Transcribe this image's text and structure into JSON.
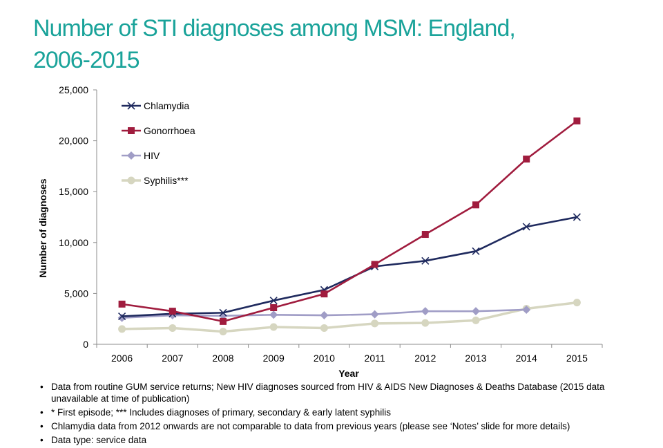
{
  "title_line1": "Number of STI diagnoses among MSM: England,",
  "title_line2": "2006-2015",
  "chart_data": {
    "type": "line",
    "xlabel": "Year",
    "ylabel": "Number of diagnoses",
    "ylim": [
      0,
      25000
    ],
    "yticks": [
      0,
      5000,
      10000,
      15000,
      20000,
      25000
    ],
    "ytick_labels": [
      "0",
      "5,000",
      "10,000",
      "15,000",
      "20,000",
      "25,000"
    ],
    "categories": [
      "2006",
      "2007",
      "2008",
      "2009",
      "2010",
      "2011",
      "2012",
      "2013",
      "2014",
      "2015"
    ],
    "legend_position": "top-left",
    "grid": false,
    "series": [
      {
        "name": "Chlamydia",
        "color": "#1f2a5e",
        "marker": "x",
        "values": [
          2750,
          3000,
          3100,
          4300,
          5350,
          7650,
          8200,
          9150,
          11550,
          12500
        ]
      },
      {
        "name": "Gonorrhoea",
        "color": "#a01c3e",
        "marker": "square",
        "values": [
          3950,
          3250,
          2250,
          3600,
          4950,
          7850,
          10800,
          13700,
          18200,
          21950
        ]
      },
      {
        "name": "HIV",
        "color": "#a09dc6",
        "marker": "diamond",
        "values": [
          2600,
          2850,
          2800,
          2900,
          2850,
          2950,
          3250,
          3250,
          3400,
          null
        ]
      },
      {
        "name": "Syphilis***",
        "color": "#d6d6c0",
        "marker": "circle",
        "values": [
          1500,
          1600,
          1250,
          1700,
          1600,
          2050,
          2100,
          2350,
          3500,
          4100
        ]
      }
    ]
  },
  "notes": [
    "Data from routine GUM service returns; New HIV diagnoses sourced from  HIV & AIDS New Diagnoses & Deaths Database (2015 data unavailable at time of publication)",
    "* First episode; *** Includes diagnoses of primary, secondary & early latent syphilis",
    "Chlamydia data from 2012 onwards are not comparable to data from previous years (please see ‘Notes’ slide for more details)",
    "Data type: service data"
  ]
}
